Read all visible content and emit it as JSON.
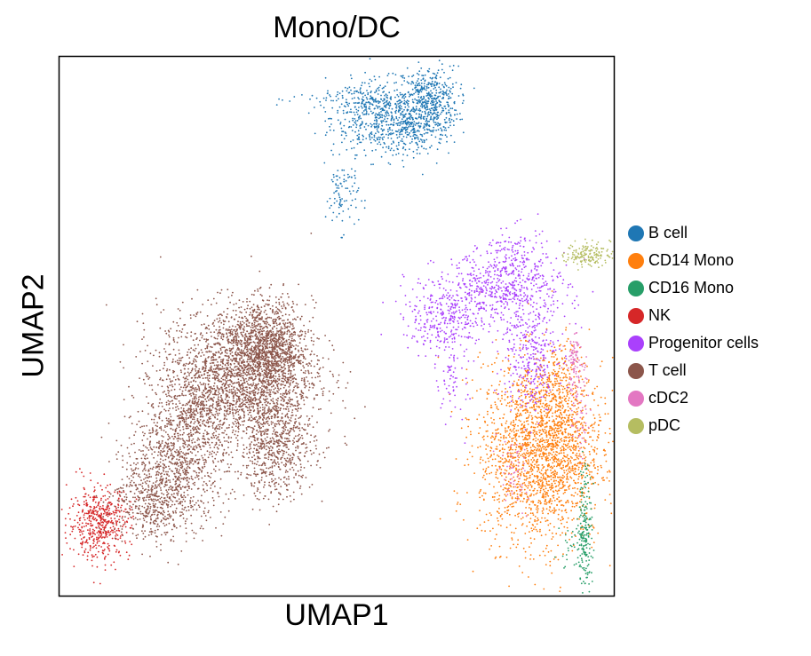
{
  "chart_data": {
    "type": "scatter",
    "title": "Mono/DC",
    "xlabel": "UMAP1",
    "ylabel": "UMAP2",
    "grid": false,
    "legend_position": "right",
    "x_ticks": [],
    "y_ticks": [],
    "series": [
      {
        "name": "B cell",
        "color": "#1f77b4",
        "clusters": [
          {
            "center": [
              2.3,
              9.2
            ],
            "spread": [
              0.45,
              0.3
            ],
            "n": 500
          },
          {
            "center": [
              3.2,
              9.45
            ],
            "spread": [
              0.25,
              0.3
            ],
            "n": 450
          },
          {
            "center": [
              2.85,
              9.0
            ],
            "spread": [
              0.3,
              0.2
            ],
            "n": 200
          },
          {
            "center": [
              1.6,
              7.9
            ],
            "spread": [
              0.15,
              0.3
            ],
            "n": 90
          },
          {
            "center": [
              2.0,
              9.5
            ],
            "spread": [
              0.6,
              0.15
            ],
            "n": 120
          }
        ]
      },
      {
        "name": "CD14 Mono",
        "color": "#ff7f0e",
        "clusters": [
          {
            "center": [
              5.2,
              3.6
            ],
            "spread": [
              0.55,
              0.75
            ],
            "n": 2200
          },
          {
            "center": [
              5.55,
              4.6
            ],
            "spread": [
              0.2,
              0.4
            ],
            "n": 200
          }
        ]
      },
      {
        "name": "CD16 Mono",
        "color": "#279e68",
        "clusters": [
          {
            "center": [
              6.0,
              2.3
            ],
            "spread": [
              0.06,
              0.55
            ],
            "n": 180
          },
          {
            "center": [
              5.8,
              2.0
            ],
            "spread": [
              0.15,
              0.2
            ],
            "n": 40
          }
        ]
      },
      {
        "name": "NK",
        "color": "#d62728",
        "clusters": [
          {
            "center": [
              -2.8,
              2.4
            ],
            "spread": [
              0.28,
              0.3
            ],
            "n": 500
          }
        ]
      },
      {
        "name": "Progenitor cells",
        "color": "#aa40fc",
        "clusters": [
          {
            "center": [
              4.5,
              6.3
            ],
            "spread": [
              0.6,
              0.3
            ],
            "n": 600
          },
          {
            "center": [
              3.4,
              5.8
            ],
            "spread": [
              0.35,
              0.25
            ],
            "n": 250
          },
          {
            "center": [
              5.0,
              5.2
            ],
            "spread": [
              0.25,
              0.45
            ],
            "n": 300
          },
          {
            "center": [
              3.6,
              5.0
            ],
            "spread": [
              0.15,
              0.45
            ],
            "n": 90
          },
          {
            "center": [
              4.7,
              6.9
            ],
            "spread": [
              0.3,
              0.25
            ],
            "n": 120
          }
        ]
      },
      {
        "name": "T cell",
        "color": "#8c564b",
        "clusters": [
          {
            "center": [
              -0.3,
              4.9
            ],
            "spread": [
              0.7,
              0.55
            ],
            "n": 2000
          },
          {
            "center": [
              0.25,
              5.3
            ],
            "spread": [
              0.35,
              0.4
            ],
            "n": 1100
          },
          {
            "center": [
              -1.4,
              3.4
            ],
            "spread": [
              0.45,
              0.5
            ],
            "n": 900
          },
          {
            "center": [
              0.4,
              3.7
            ],
            "spread": [
              0.35,
              0.45
            ],
            "n": 700
          },
          {
            "center": [
              -1.9,
              2.7
            ],
            "spread": [
              0.35,
              0.3
            ],
            "n": 350
          },
          {
            "center": [
              -1.0,
              4.3
            ],
            "spread": [
              0.3,
              0.3
            ],
            "n": 300
          }
        ]
      },
      {
        "name": "cDC2",
        "color": "#e377c2",
        "clusters": [
          {
            "center": [
              5.8,
              5.1
            ],
            "spread": [
              0.08,
              0.25
            ],
            "n": 90
          },
          {
            "center": [
              4.7,
              3.2
            ],
            "spread": [
              0.15,
              0.3
            ],
            "n": 60
          },
          {
            "center": [
              5.9,
              4.3
            ],
            "spread": [
              0.08,
              0.4
            ],
            "n": 60
          }
        ]
      },
      {
        "name": "pDC",
        "color": "#b5bd61",
        "clusters": [
          {
            "center": [
              6.05,
              6.9
            ],
            "spread": [
              0.2,
              0.1
            ],
            "n": 150
          }
        ]
      }
    ],
    "xlim": [
      -3.5,
      6.5
    ],
    "ylim": [
      1.2,
      10.2
    ]
  }
}
